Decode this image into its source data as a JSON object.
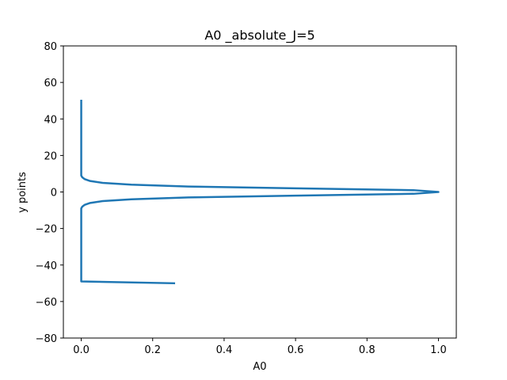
{
  "chart_data": {
    "type": "line",
    "title": "A0 _absolute_J=5",
    "xlabel": "A0",
    "ylabel": "y points",
    "xlim": [
      -0.05,
      1.05
    ],
    "ylim": [
      -80,
      80
    ],
    "xticks": [
      0.0,
      0.2,
      0.4,
      0.6,
      0.8,
      1.0
    ],
    "xtick_labels": [
      "0.0",
      "0.2",
      "0.4",
      "0.6",
      "0.8",
      "1.0"
    ],
    "yticks": [
      -80,
      -60,
      -40,
      -20,
      0,
      20,
      40,
      60,
      80
    ],
    "ytick_labels": [
      "−80",
      "−60",
      "−40",
      "−20",
      "0",
      "20",
      "40",
      "60",
      "80"
    ],
    "grid": false,
    "series": [
      {
        "color": "#1f77b4",
        "x": [
          0.26,
          0.0,
          0.0,
          0.0,
          0.0,
          0.0,
          0.0,
          0.003,
          0.01,
          0.025,
          0.06,
          0.14,
          0.3,
          0.6,
          0.93,
          1.0,
          0.93,
          0.6,
          0.3,
          0.14,
          0.06,
          0.025,
          0.01,
          0.003,
          0.0,
          0.0,
          0.0,
          0.0,
          0.0
        ],
        "y": [
          -50,
          -49,
          -40,
          -30,
          -20,
          -10,
          -9,
          -8,
          -7,
          -6,
          -5,
          -4,
          -3,
          -2,
          -1,
          0,
          1,
          2,
          3,
          4,
          5,
          6,
          7,
          8,
          9,
          10,
          20,
          30,
          50
        ]
      }
    ]
  }
}
